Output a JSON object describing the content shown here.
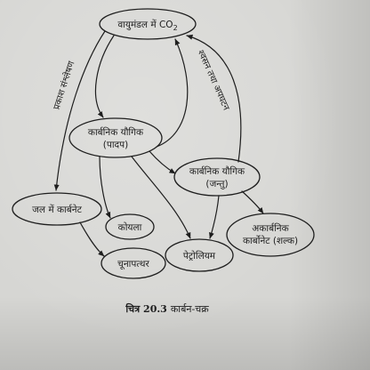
{
  "colors": {
    "paper": "#d6d6d3",
    "ink": "#1e1e1e"
  },
  "nodes": {
    "atmosphere": {
      "prefix": "वायुमंडल में CO",
      "sub": "2"
    },
    "plants": {
      "line1": "कार्बनिक यौगिक",
      "line2": "(पादप)"
    },
    "animals": {
      "line1": "कार्बनिक यौगिक",
      "line2": "(जन्तु)"
    },
    "water_carbonate": {
      "label": "जल में कार्बनेट"
    },
    "coal": {
      "label": "कोयला"
    },
    "limestone": {
      "label": "चूनापत्थर"
    },
    "petroleum": {
      "label": "पेट्रोलियम"
    },
    "inorganic_carbonate": {
      "line1": "अकार्बनिक",
      "line2": "कार्बोनेट (शल्क)"
    }
  },
  "arrow_labels": {
    "photosynthesis": "प्रकाश संश्लेषण",
    "respiration": "श्वसन तथा अपघटन"
  },
  "caption": {
    "number": "चित्र 20.3",
    "title": "कार्बन-चक्र"
  }
}
